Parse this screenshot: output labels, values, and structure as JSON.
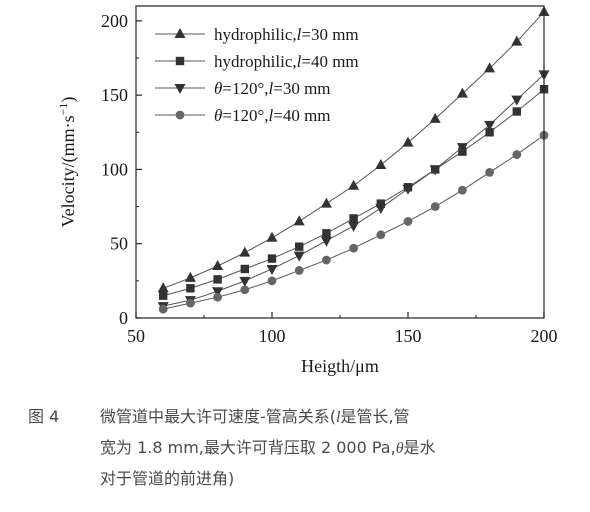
{
  "chart_data": {
    "type": "line",
    "xlabel": "Heigth/μm",
    "ylabel_prefix": "Velocity/(mm·s",
    "ylabel_sup": "−1",
    "ylabel_suffix": ")",
    "xlim": [
      50,
      200
    ],
    "ylim": [
      0,
      210
    ],
    "xticks": [
      50,
      100,
      150,
      200
    ],
    "yticks": [
      0,
      50,
      100,
      150,
      200
    ],
    "grid": false,
    "legend_position": "top-left",
    "x": [
      60,
      70,
      80,
      90,
      100,
      110,
      120,
      130,
      140,
      150,
      160,
      170,
      180,
      190,
      200
    ],
    "series": [
      {
        "name_plain": "hydrophilic,",
        "name_var": "l",
        "name_rest": "=30 mm",
        "marker": "triangle-up",
        "values": [
          20,
          27,
          35,
          44,
          54,
          65,
          77,
          89,
          103,
          118,
          134,
          151,
          168,
          186,
          206
        ]
      },
      {
        "name_plain": "hydrophilic,",
        "name_var": "l",
        "name_rest": "=40 mm",
        "marker": "square",
        "values": [
          15,
          20,
          26,
          33,
          40,
          48,
          57,
          67,
          77,
          88,
          100,
          112,
          125,
          139,
          154
        ]
      },
      {
        "name_plain": "",
        "name_var": "θ",
        "name_rest": "=120°,",
        "name_var2": "l",
        "name_rest2": "=30 mm",
        "marker": "triangle-down",
        "values": [
          8,
          12,
          18,
          25,
          33,
          42,
          52,
          62,
          74,
          87,
          100,
          115,
          130,
          147,
          164
        ]
      },
      {
        "name_plain": "",
        "name_var": "θ",
        "name_rest": "=120°,",
        "name_var2": "l",
        "name_rest2": "=40 mm",
        "marker": "circle",
        "values": [
          6,
          10,
          14,
          19,
          25,
          32,
          39,
          47,
          56,
          65,
          75,
          86,
          98,
          110,
          123
        ]
      }
    ]
  },
  "caption": {
    "label": "图 4",
    "line1_a": "微管道中最大许可速度-管高关系(",
    "line1_var": "l",
    "line1_b": "是管长,管",
    "line2": "宽为 1.8 mm,最大许可背压取 2 000 Pa,",
    "line2_var": "θ",
    "line2_b": "是水",
    "line3": "对于管道的前进角)"
  }
}
